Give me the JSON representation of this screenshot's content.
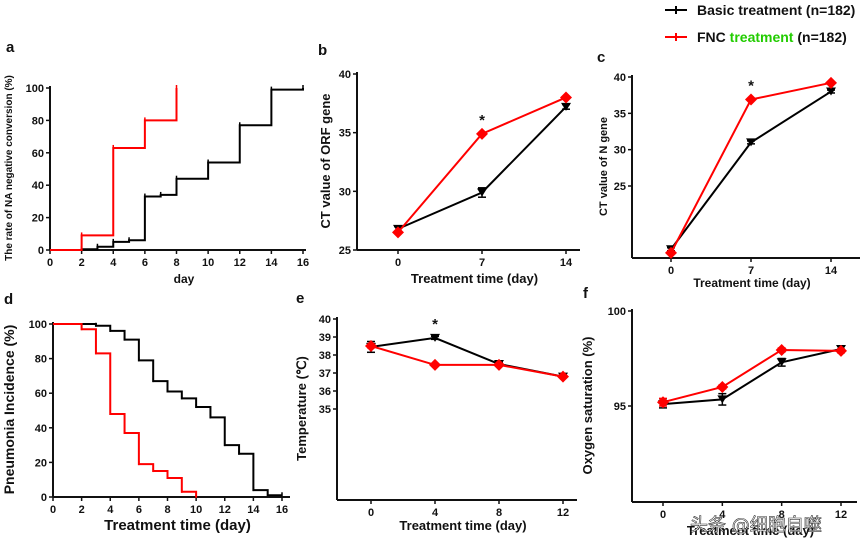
{
  "legend": {
    "items": [
      {
        "parts": [
          {
            "text": "Basic treatment (n=182)",
            "color": "#111111"
          }
        ],
        "color": "#000000"
      },
      {
        "parts": [
          {
            "text": "FNC ",
            "color": "#111111"
          },
          {
            "text": "treatment",
            "color": "#22cc00"
          },
          {
            "text": " (n=182)",
            "color": "#111111"
          }
        ],
        "color": "#ff0000"
      }
    ]
  },
  "watermark": "头条 @细胞自噬",
  "colors": {
    "basic": "#000000",
    "fnc": "#ff0000",
    "axis": "#111111"
  },
  "chart_data": [
    {
      "id": "a",
      "panel": "a",
      "type": "line",
      "style": "step",
      "title": "",
      "xlabel": "day",
      "ylabel": "The rate of NA negative conversion (%)",
      "xlim": [
        0,
        16
      ],
      "ylim": [
        0,
        100
      ],
      "xticks": [
        0,
        2,
        4,
        6,
        8,
        10,
        12,
        14,
        16
      ],
      "yticks": [
        0,
        20,
        40,
        60,
        80,
        100
      ],
      "series": [
        {
          "name": "Basic treatment (n=182)",
          "key": "basic",
          "x": [
            0,
            2,
            3,
            4,
            5,
            6,
            7,
            8,
            10,
            12,
            14,
            16
          ],
          "y": [
            0,
            0.5,
            2,
            5,
            6,
            33,
            34,
            44,
            54,
            77,
            99,
            100
          ]
        },
        {
          "name": "FNC treatment (n=182)",
          "key": "fnc",
          "x": [
            0,
            2,
            4,
            6,
            8
          ],
          "y": [
            0,
            9,
            63,
            80,
            100
          ]
        }
      ]
    },
    {
      "id": "b",
      "panel": "b",
      "type": "line",
      "title": "",
      "xlabel": "Treatment time (day)",
      "ylabel": "CT value of ORF gene",
      "xlim": [
        -3,
        17
      ],
      "ylim": [
        25,
        40
      ],
      "xticks": [
        0,
        7,
        14
      ],
      "yticks": [
        25,
        30,
        35,
        40
      ],
      "annotations": [
        {
          "text": "*",
          "x": 7
        }
      ],
      "series": [
        {
          "name": "Basic treatment (n=182)",
          "key": "basic",
          "x": [
            0,
            7,
            14
          ],
          "y": [
            26.8,
            29.9,
            37.2
          ],
          "err": [
            0.2,
            0.4,
            0.2
          ]
        },
        {
          "name": "FNC treatment (n=182)",
          "key": "fnc",
          "x": [
            0,
            7,
            14
          ],
          "y": [
            26.5,
            34.9,
            38.0
          ],
          "err": [
            0.1,
            0.1,
            0.1
          ]
        }
      ]
    },
    {
      "id": "c",
      "panel": "c",
      "type": "line",
      "title": "",
      "xlabel": "Treatment time (day)",
      "ylabel": "CT value of N gene",
      "xlim": [
        -3,
        17
      ],
      "ylim": [
        10,
        40
      ],
      "xticks": [
        0,
        7,
        14
      ],
      "yticks": [
        25,
        30,
        35,
        40
      ],
      "annotations": [
        {
          "text": "*",
          "x": 7
        }
      ],
      "series": [
        {
          "name": "Basic treatment (n=182)",
          "key": "basic",
          "x": [
            0,
            7,
            14
          ],
          "y": [
            16.3,
            31.0,
            38.0
          ],
          "err": [
            0.2,
            0.2,
            0.2
          ]
        },
        {
          "name": "FNC treatment (n=182)",
          "key": "fnc",
          "x": [
            0,
            7,
            14
          ],
          "y": [
            15.8,
            36.9,
            39.2
          ],
          "err": [
            0.1,
            0.1,
            0.1
          ]
        }
      ]
    },
    {
      "id": "d",
      "panel": "d",
      "type": "line",
      "style": "step",
      "title": "",
      "xlabel": "Treatment time (day)",
      "ylabel": "Pneumonia Incidence (%)",
      "xlim": [
        0,
        16.5
      ],
      "ylim": [
        0,
        100
      ],
      "xticks": [
        0,
        2,
        4,
        6,
        8,
        10,
        12,
        14,
        16
      ],
      "yticks": [
        0,
        20,
        40,
        60,
        80,
        100
      ],
      "series": [
        {
          "name": "Basic treatment (n=182)",
          "key": "basic",
          "x": [
            0,
            3,
            4,
            5,
            6,
            7,
            8,
            9,
            10,
            11,
            12,
            13,
            14,
            15,
            16
          ],
          "y": [
            100,
            99,
            96,
            91,
            79,
            67,
            61,
            57,
            52,
            46,
            30,
            25,
            4,
            1,
            1
          ]
        },
        {
          "name": "FNC treatment (n=182)",
          "key": "fnc",
          "x": [
            0,
            2,
            3,
            4,
            5,
            6,
            7,
            8,
            9,
            10
          ],
          "y": [
            100,
            97,
            83,
            48,
            37,
            19,
            15,
            11,
            3,
            0
          ]
        }
      ]
    },
    {
      "id": "e",
      "panel": "e",
      "type": "line",
      "title": "",
      "xlabel": "Treatment time (day)",
      "ylabel": "Temperature (℃)",
      "xlim": [
        -1.5,
        13.2
      ],
      "ylim": [
        30,
        40
      ],
      "xticks": [
        0,
        4,
        8,
        12
      ],
      "yticks": [
        35,
        36,
        37,
        38,
        39,
        40
      ],
      "annotations": [
        {
          "text": "*",
          "x": 4
        }
      ],
      "series": [
        {
          "name": "Basic treatment (n=182)",
          "key": "basic",
          "x": [
            0,
            4,
            8,
            12
          ],
          "y": [
            38.45,
            38.95,
            37.5,
            36.8
          ],
          "err": [
            0.3,
            0.08,
            0.08,
            0.05
          ]
        },
        {
          "name": "FNC treatment (n=182)",
          "key": "fnc",
          "x": [
            0,
            4,
            8,
            12
          ],
          "y": [
            38.5,
            37.45,
            37.45,
            36.8
          ],
          "err": [
            0.1,
            0.05,
            0.05,
            0.05
          ]
        }
      ]
    },
    {
      "id": "f",
      "panel": "f",
      "type": "line",
      "title": "",
      "xlabel": "Treatment time (day)",
      "ylabel": "Oxygen saturation (%)",
      "xlim": [
        -1.2,
        13
      ],
      "ylim": [
        90,
        100
      ],
      "xticks": [
        0,
        4,
        8,
        12
      ],
      "yticks": [
        95,
        100
      ],
      "series": [
        {
          "name": "Basic treatment (n=182)",
          "key": "basic",
          "x": [
            0,
            4,
            8,
            12
          ],
          "y": [
            95.1,
            95.35,
            97.3,
            98.0
          ],
          "err": [
            0.2,
            0.3,
            0.2,
            0.15
          ]
        },
        {
          "name": "FNC treatment (n=182)",
          "key": "fnc",
          "x": [
            0,
            4,
            8,
            12
          ],
          "y": [
            95.2,
            96.0,
            97.95,
            97.9
          ],
          "err": [
            0.2,
            0.1,
            0.1,
            0.1
          ]
        }
      ]
    }
  ]
}
